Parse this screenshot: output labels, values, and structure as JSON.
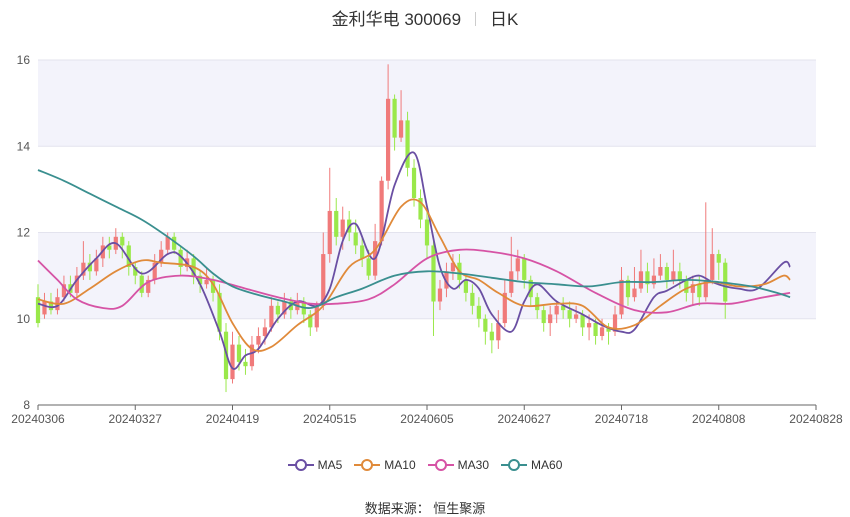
{
  "title": {
    "stock": "金利华电 300069",
    "period": "日K"
  },
  "source_label": "数据来源：  恒生聚源",
  "colors": {
    "up": "#f07a7a",
    "down": "#9ae84a",
    "grid_band": "#f3f3fb"
  },
  "chart_data": {
    "type": "candlestick",
    "ylim": [
      8,
      16
    ],
    "yticks": [
      8,
      10,
      12,
      14,
      16
    ],
    "x_tick_labels": [
      "20240306",
      "20240327",
      "20240419",
      "20240515",
      "20240605",
      "20240627",
      "20240718",
      "20240808",
      "20240828"
    ],
    "x_tick_index": [
      0,
      15,
      30,
      45,
      60,
      75,
      90,
      105,
      120
    ],
    "candles": [
      [
        10.5,
        9.9,
        10.8,
        9.8
      ],
      [
        10.1,
        10.4,
        10.6,
        10.0
      ],
      [
        10.4,
        10.2,
        10.6,
        10.1
      ],
      [
        10.2,
        10.5,
        10.7,
        10.1
      ],
      [
        10.5,
        10.8,
        11.0,
        10.4
      ],
      [
        10.8,
        10.6,
        11.0,
        10.5
      ],
      [
        10.6,
        11.0,
        11.2,
        10.5
      ],
      [
        11.0,
        11.3,
        11.8,
        10.9
      ],
      [
        11.3,
        11.1,
        11.5,
        10.9
      ],
      [
        11.1,
        11.4,
        11.6,
        11.0
      ],
      [
        11.4,
        11.7,
        11.9,
        11.2
      ],
      [
        11.7,
        11.6,
        11.9,
        11.4
      ],
      [
        11.6,
        11.9,
        12.1,
        11.5
      ],
      [
        11.9,
        11.7,
        12.0,
        11.4
      ],
      [
        11.7,
        11.2,
        11.8,
        11.0
      ],
      [
        11.2,
        11.0,
        11.3,
        10.8
      ],
      [
        11.0,
        10.6,
        11.1,
        10.5
      ],
      [
        10.6,
        10.9,
        11.0,
        10.5
      ],
      [
        10.9,
        11.3,
        11.5,
        10.8
      ],
      [
        11.3,
        11.6,
        11.8,
        11.2
      ],
      [
        11.6,
        11.9,
        12.0,
        11.5
      ],
      [
        11.9,
        11.6,
        12.0,
        11.5
      ],
      [
        11.6,
        11.2,
        11.7,
        11.0
      ],
      [
        11.2,
        11.4,
        11.6,
        11.1
      ],
      [
        11.4,
        11.0,
        11.5,
        10.8
      ],
      [
        11.0,
        10.8,
        11.1,
        10.6
      ],
      [
        10.8,
        10.9,
        11.2,
        10.7
      ],
      [
        10.9,
        10.6,
        11.0,
        10.4
      ],
      [
        10.6,
        9.7,
        10.8,
        9.5
      ],
      [
        9.7,
        8.6,
        9.9,
        8.3
      ],
      [
        8.6,
        9.4,
        9.7,
        8.5
      ],
      [
        9.4,
        9.0,
        9.6,
        8.8
      ],
      [
        9.0,
        8.9,
        9.3,
        8.7
      ],
      [
        8.9,
        9.4,
        9.6,
        8.8
      ],
      [
        9.4,
        9.6,
        9.8,
        9.2
      ],
      [
        9.6,
        9.8,
        10.0,
        9.4
      ],
      [
        9.8,
        10.3,
        10.5,
        9.7
      ],
      [
        10.3,
        10.1,
        10.4,
        9.9
      ],
      [
        10.1,
        10.4,
        10.6,
        10.0
      ],
      [
        10.4,
        10.2,
        10.5,
        10.0
      ],
      [
        10.2,
        10.4,
        10.6,
        10.1
      ],
      [
        10.4,
        10.1,
        10.5,
        9.9
      ],
      [
        10.1,
        9.8,
        10.2,
        9.6
      ],
      [
        9.8,
        10.3,
        10.4,
        9.7
      ],
      [
        10.3,
        11.5,
        12.0,
        10.2
      ],
      [
        11.5,
        12.5,
        13.5,
        11.3
      ],
      [
        12.5,
        11.9,
        12.8,
        11.7
      ],
      [
        11.9,
        12.3,
        12.6,
        11.6
      ],
      [
        12.3,
        12.0,
        12.5,
        11.8
      ],
      [
        12.0,
        11.7,
        12.3,
        11.5
      ],
      [
        11.7,
        11.4,
        11.9,
        11.2
      ],
      [
        11.4,
        11.0,
        11.6,
        10.9
      ],
      [
        11.0,
        11.8,
        12.2,
        10.9
      ],
      [
        11.8,
        13.2,
        13.3,
        11.7
      ],
      [
        13.2,
        15.1,
        15.9,
        13.0
      ],
      [
        15.1,
        14.2,
        15.2,
        13.9
      ],
      [
        14.2,
        14.6,
        15.3,
        14.1
      ],
      [
        14.6,
        13.5,
        14.8,
        13.3
      ],
      [
        13.5,
        12.8,
        13.7,
        12.6
      ],
      [
        12.8,
        12.3,
        13.0,
        12.1
      ],
      [
        12.3,
        11.7,
        12.5,
        11.4
      ],
      [
        11.7,
        10.4,
        11.9,
        9.6
      ],
      [
        10.4,
        10.7,
        10.9,
        10.2
      ],
      [
        10.7,
        11.1,
        11.3,
        10.5
      ],
      [
        11.1,
        11.3,
        11.5,
        10.9
      ],
      [
        11.3,
        10.9,
        11.5,
        10.7
      ],
      [
        10.9,
        10.6,
        11.0,
        10.4
      ],
      [
        10.6,
        10.3,
        10.8,
        10.1
      ],
      [
        10.3,
        10.0,
        10.5,
        9.8
      ],
      [
        10.0,
        9.7,
        10.1,
        9.4
      ],
      [
        9.7,
        9.5,
        9.9,
        9.2
      ],
      [
        9.5,
        9.9,
        10.2,
        9.3
      ],
      [
        9.9,
        10.6,
        10.9,
        9.8
      ],
      [
        10.6,
        11.1,
        11.9,
        10.5
      ],
      [
        11.1,
        11.4,
        11.6,
        10.9
      ],
      [
        11.4,
        10.9,
        11.5,
        10.7
      ],
      [
        10.9,
        10.5,
        11.0,
        10.3
      ],
      [
        10.5,
        10.2,
        10.6,
        10.0
      ],
      [
        10.2,
        9.9,
        10.3,
        9.7
      ],
      [
        9.9,
        10.1,
        10.3,
        9.6
      ],
      [
        10.1,
        10.3,
        10.4,
        9.9
      ],
      [
        10.3,
        10.2,
        10.5,
        10.0
      ],
      [
        10.2,
        10.0,
        10.4,
        9.8
      ],
      [
        10.0,
        10.1,
        10.3,
        9.9
      ],
      [
        10.1,
        9.8,
        10.2,
        9.6
      ],
      [
        9.8,
        9.9,
        10.1,
        9.5
      ],
      [
        9.9,
        9.6,
        10.0,
        9.4
      ],
      [
        9.6,
        9.8,
        10.0,
        9.5
      ],
      [
        9.8,
        9.7,
        9.9,
        9.4
      ],
      [
        9.7,
        10.1,
        10.3,
        9.6
      ],
      [
        10.1,
        10.9,
        11.2,
        10.0
      ],
      [
        10.9,
        10.5,
        11.0,
        10.3
      ],
      [
        10.5,
        10.7,
        11.2,
        10.4
      ],
      [
        10.7,
        11.1,
        11.6,
        10.6
      ],
      [
        11.1,
        10.8,
        11.3,
        10.6
      ],
      [
        10.8,
        11.0,
        11.4,
        10.7
      ],
      [
        11.0,
        11.2,
        11.5,
        10.9
      ],
      [
        11.2,
        10.9,
        11.3,
        10.7
      ],
      [
        10.9,
        11.1,
        11.6,
        10.8
      ],
      [
        11.1,
        10.9,
        11.3,
        10.7
      ],
      [
        10.9,
        10.6,
        11.0,
        10.4
      ],
      [
        10.6,
        10.8,
        11.0,
        10.3
      ],
      [
        10.8,
        10.5,
        11.0,
        10.3
      ],
      [
        10.5,
        10.9,
        12.7,
        10.4
      ],
      [
        10.9,
        11.5,
        12.1,
        10.8
      ],
      [
        11.5,
        11.3,
        11.6,
        10.9
      ],
      [
        11.3,
        10.4,
        11.4,
        10.0
      ]
    ],
    "series": [
      {
        "name": "MA5",
        "color": "#6a4fa3",
        "points": [
          [
            0,
            10.35
          ],
          [
            3,
            10.3
          ],
          [
            6,
            10.9
          ],
          [
            9,
            11.4
          ],
          [
            12,
            11.75
          ],
          [
            16,
            11.05
          ],
          [
            20,
            11.5
          ],
          [
            22,
            11.45
          ],
          [
            25,
            10.8
          ],
          [
            28,
            9.7
          ],
          [
            30,
            8.85
          ],
          [
            32,
            9.15
          ],
          [
            34,
            9.3
          ],
          [
            37,
            10.0
          ],
          [
            40,
            10.4
          ],
          [
            43,
            10.3
          ],
          [
            45,
            10.7
          ],
          [
            47,
            11.8
          ],
          [
            49,
            12.2
          ],
          [
            52,
            11.4
          ],
          [
            55,
            13.1
          ],
          [
            58,
            13.85
          ],
          [
            60,
            12.6
          ],
          [
            62,
            11.2
          ],
          [
            64,
            10.7
          ],
          [
            66,
            10.9
          ],
          [
            68,
            10.7
          ],
          [
            70,
            10.1
          ],
          [
            73,
            9.7
          ],
          [
            75,
            10.4
          ],
          [
            77,
            10.8
          ],
          [
            80,
            10.4
          ],
          [
            84,
            10.1
          ],
          [
            87,
            9.85
          ],
          [
            90,
            9.7
          ],
          [
            92,
            9.75
          ],
          [
            95,
            10.5
          ],
          [
            97,
            10.65
          ],
          [
            100,
            10.9
          ],
          [
            102,
            11.0
          ],
          [
            104,
            10.85
          ],
          [
            106,
            10.75
          ],
          [
            108,
            10.7
          ],
          [
            111,
            10.7
          ],
          [
            115,
            11.3
          ],
          [
            116,
            11.2
          ]
        ]
      },
      {
        "name": "MA10",
        "color": "#e08a3a",
        "points": [
          [
            0,
            10.45
          ],
          [
            4,
            10.35
          ],
          [
            8,
            10.7
          ],
          [
            12,
            11.1
          ],
          [
            16,
            11.35
          ],
          [
            19,
            11.3
          ],
          [
            24,
            11.2
          ],
          [
            27,
            10.8
          ],
          [
            30,
            9.9
          ],
          [
            33,
            9.3
          ],
          [
            36,
            9.35
          ],
          [
            40,
            9.85
          ],
          [
            44,
            10.3
          ],
          [
            48,
            11.2
          ],
          [
            52,
            11.6
          ],
          [
            56,
            12.6
          ],
          [
            59,
            12.7
          ],
          [
            62,
            11.9
          ],
          [
            65,
            11.1
          ],
          [
            68,
            10.9
          ],
          [
            71,
            10.6
          ],
          [
            75,
            10.3
          ],
          [
            80,
            10.35
          ],
          [
            84,
            10.3
          ],
          [
            88,
            9.8
          ],
          [
            92,
            9.85
          ],
          [
            96,
            10.3
          ],
          [
            100,
            10.7
          ],
          [
            104,
            10.85
          ],
          [
            108,
            10.75
          ],
          [
            112,
            10.8
          ],
          [
            115,
            11.0
          ],
          [
            116,
            10.9
          ]
        ]
      },
      {
        "name": "MA30",
        "color": "#d653a5",
        "points": [
          [
            0,
            11.35
          ],
          [
            3,
            10.9
          ],
          [
            6,
            10.45
          ],
          [
            10,
            10.25
          ],
          [
            13,
            10.3
          ],
          [
            17,
            10.85
          ],
          [
            22,
            11.0
          ],
          [
            27,
            10.9
          ],
          [
            32,
            10.7
          ],
          [
            37,
            10.5
          ],
          [
            42,
            10.35
          ],
          [
            46,
            10.35
          ],
          [
            51,
            10.45
          ],
          [
            55,
            10.8
          ],
          [
            60,
            11.4
          ],
          [
            65,
            11.6
          ],
          [
            70,
            11.55
          ],
          [
            75,
            11.4
          ],
          [
            80,
            11.1
          ],
          [
            86,
            10.6
          ],
          [
            92,
            10.2
          ],
          [
            97,
            10.15
          ],
          [
            102,
            10.35
          ],
          [
            107,
            10.35
          ],
          [
            112,
            10.5
          ],
          [
            116,
            10.6
          ]
        ]
      },
      {
        "name": "MA60",
        "color": "#3a8f8f",
        "points": [
          [
            0,
            13.45
          ],
          [
            4,
            13.2
          ],
          [
            8,
            12.9
          ],
          [
            12,
            12.6
          ],
          [
            16,
            12.3
          ],
          [
            20,
            11.9
          ],
          [
            24,
            11.45
          ],
          [
            27,
            11.05
          ],
          [
            30,
            10.75
          ],
          [
            34,
            10.55
          ],
          [
            38,
            10.4
          ],
          [
            42,
            10.25
          ],
          [
            46,
            10.5
          ],
          [
            50,
            10.7
          ],
          [
            55,
            11.0
          ],
          [
            60,
            11.1
          ],
          [
            65,
            11.05
          ],
          [
            70,
            10.95
          ],
          [
            75,
            10.85
          ],
          [
            80,
            10.8
          ],
          [
            85,
            10.75
          ],
          [
            90,
            10.85
          ],
          [
            95,
            10.85
          ],
          [
            100,
            10.9
          ],
          [
            105,
            10.85
          ],
          [
            110,
            10.75
          ],
          [
            114,
            10.6
          ],
          [
            116,
            10.5
          ]
        ]
      }
    ]
  }
}
